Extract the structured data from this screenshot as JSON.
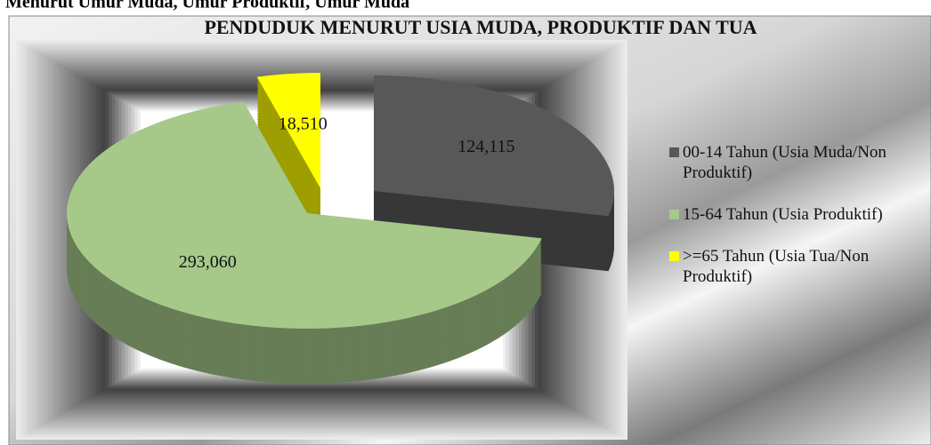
{
  "heading": "Menurut Umur Muda, Umur Produktif, Umur Muda",
  "chart_data": {
    "type": "pie",
    "title": "PENDUDUK MENURUT USIA MUDA, PRODUKTIF DAN TUA",
    "categories": [
      "00-14 Tahun (Usia Muda/Non Produktif)",
      "15-64 Tahun (Usia Produktif)",
      ">=65 Tahun (Usia Tua/Non Produktif)"
    ],
    "values": [
      124115,
      293060,
      18510
    ],
    "value_labels": [
      "124,115",
      "293,060",
      "18,510"
    ],
    "colors": [
      "#585858",
      "#a6c98a",
      "#ffff00"
    ],
    "legend": "right"
  }
}
